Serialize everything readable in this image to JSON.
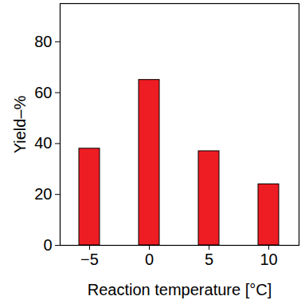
{
  "chart_data": {
    "type": "bar",
    "xlabel": "Reaction temperature [°C]",
    "ylabel": "Yield–%",
    "categories": [
      "−5",
      "0",
      "5",
      "10"
    ],
    "values": [
      38,
      65,
      37,
      24
    ],
    "color": "#ee1d23",
    "ylim": [
      0,
      95
    ],
    "yticks": [
      0,
      20,
      40,
      60,
      80
    ],
    "grid": false
  }
}
